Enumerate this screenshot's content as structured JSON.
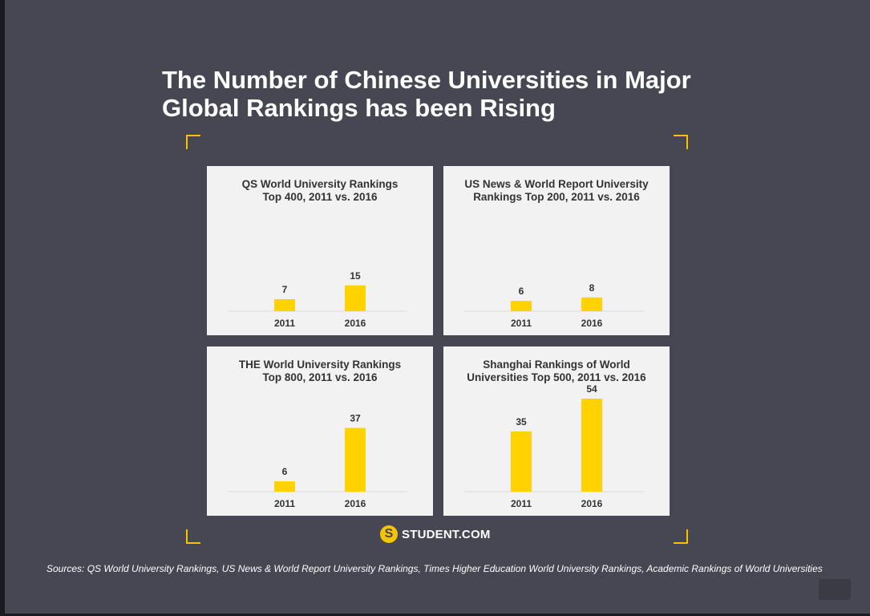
{
  "title": "The Number of Chinese Universities in Major Global Rankings has been Rising",
  "logo": {
    "mark": "S",
    "text": "STUDENT.COM"
  },
  "sources": "Sources: QS World University Rankings, US News & World Report University Rankings, Times Higher Education World University Rankings, Academic Rankings of World Universities",
  "colors": {
    "bar": "#ffd200",
    "panel": "#f2f2f2",
    "background": "#464753",
    "accent": "#f5c400"
  },
  "chart_data": [
    {
      "type": "bar",
      "title": "QS World University Rankings Top 400, 2011 vs. 2016",
      "title_lines": [
        "QS World University Rankings",
        "Top 400, 2011 vs. 2016"
      ],
      "categories": [
        "2011",
        "2016"
      ],
      "values": [
        7,
        15
      ],
      "ylim": [
        0,
        54
      ]
    },
    {
      "type": "bar",
      "title": "US News & World Report University Rankings Top 200, 2011 vs. 2016",
      "title_lines": [
        "US News & World Report University",
        "Rankings Top 200, 2011 vs. 2016"
      ],
      "categories": [
        "2011",
        "2016"
      ],
      "values": [
        6,
        8
      ],
      "ylim": [
        0,
        54
      ]
    },
    {
      "type": "bar",
      "title": "THE World University Rankings Top 800, 2011 vs. 2016",
      "title_lines": [
        "THE World University Rankings",
        "Top 800, 2011 vs. 2016"
      ],
      "categories": [
        "2011",
        "2016"
      ],
      "values": [
        6,
        37
      ],
      "ylim": [
        0,
        54
      ]
    },
    {
      "type": "bar",
      "title": "Shanghai Rankings of World Universities Top 500, 2011 vs. 2016",
      "title_lines": [
        "Shanghai Rankings of World",
        "Universities Top 500, 2011 vs. 2016"
      ],
      "categories": [
        "2011",
        "2016"
      ],
      "values": [
        35,
        54
      ],
      "ylim": [
        0,
        54
      ]
    }
  ]
}
